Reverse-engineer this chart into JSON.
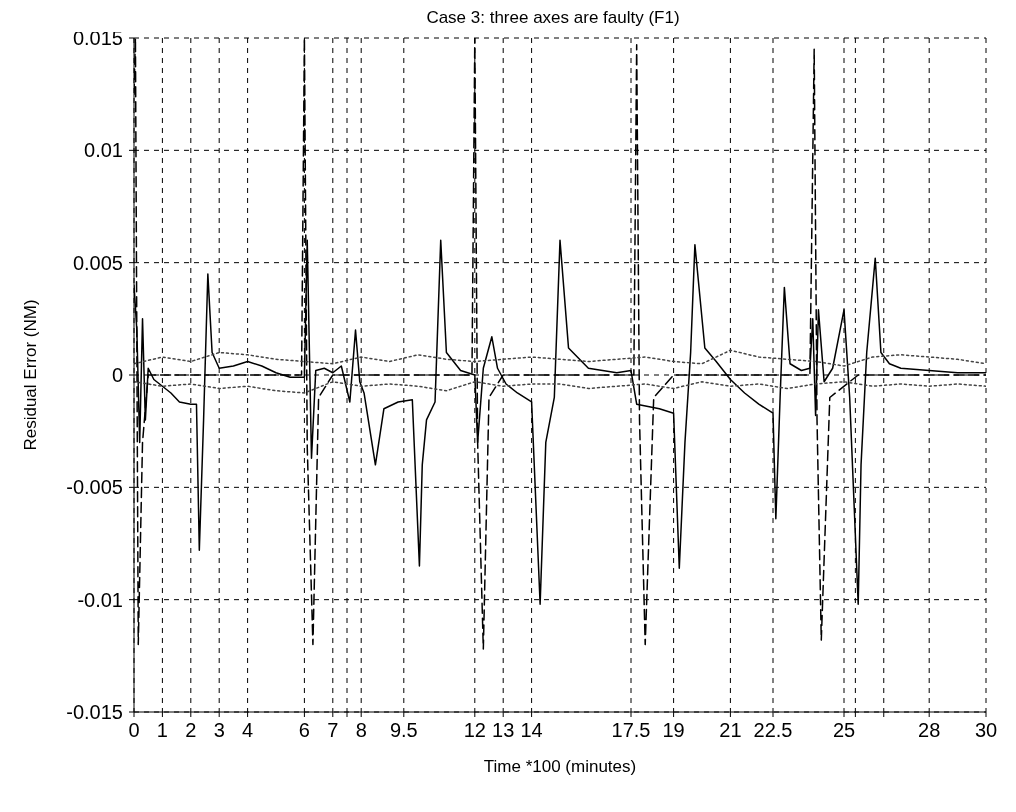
{
  "chart_data": {
    "type": "line",
    "title": "Case 3: three axes are faulty (F1)",
    "xlabel": "Time *100 (minutes)",
    "ylabel": "Residual Error (NM)",
    "xlim": [
      0,
      30
    ],
    "ylim": [
      -0.015,
      0.015
    ],
    "xticks": [
      0,
      1,
      2,
      3,
      4,
      6,
      7,
      {
        "value": 7.5,
        "label": null
      },
      8,
      9.5,
      12,
      13,
      14,
      17.5,
      19,
      21,
      22.5,
      25,
      {
        "value": 25.4,
        "label": null
      },
      {
        "value": 26.4,
        "label": null
      },
      28,
      30
    ],
    "yticks": [
      -0.015,
      -0.01,
      -0.005,
      0,
      0.005,
      0.01,
      0.015
    ],
    "grid": true,
    "series": [
      {
        "color": "#000000",
        "line_style": "solid",
        "x": [
          0,
          0.1,
          0.2,
          0.3,
          0.4,
          0.5,
          0.7,
          1.0,
          1.3,
          1.6,
          2.0,
          2.2,
          2.3,
          2.45,
          2.6,
          2.75,
          3.0,
          3.5,
          4.0,
          4.5,
          5.0,
          5.5,
          6.0,
          6.1,
          6.25,
          6.4,
          6.7,
          7.0,
          7.3,
          7.6,
          7.8,
          7.95,
          8.1,
          8.5,
          8.8,
          9.3,
          9.8,
          10.05,
          10.15,
          10.3,
          10.6,
          10.8,
          11.0,
          11.5,
          12.0,
          12.1,
          12.3,
          12.6,
          12.8,
          13.1,
          13.5,
          14.0,
          14.3,
          14.5,
          14.8,
          15.0,
          15.3,
          16.0,
          16.5,
          17.0,
          17.5,
          17.7,
          18.5,
          19.0,
          19.2,
          19.4,
          19.6,
          19.75,
          20.1,
          20.5,
          21.0,
          21.5,
          22.0,
          22.5,
          22.6,
          22.75,
          22.9,
          23.1,
          23.5,
          23.8,
          23.9,
          24.0,
          24.1,
          24.3,
          24.6,
          25.0,
          25.2,
          25.5,
          25.6,
          25.8,
          26.1,
          26.3,
          26.6,
          27.0,
          28.0,
          29.0,
          30.0
        ],
        "values": [
          0.004,
          0.002,
          -0.003,
          0.0025,
          -0.002,
          0.0003,
          -0.0002,
          -0.0005,
          -0.0008,
          -0.0012,
          -0.0013,
          -0.0013,
          -0.0078,
          -0.002,
          0.0045,
          0.001,
          0.0003,
          0.0004,
          0.0006,
          0.0004,
          0.0001,
          -0.0001,
          -0.0001,
          0.006,
          -0.0037,
          0.0002,
          0.0003,
          0.0001,
          0.0004,
          -0.0012,
          0.002,
          -0.0003,
          -0.0008,
          -0.004,
          -0.0015,
          -0.0012,
          -0.0011,
          -0.0085,
          -0.004,
          -0.002,
          -0.0012,
          0.006,
          0.001,
          0.0002,
          0,
          -0.003,
          0.0003,
          0.0017,
          0.0003,
          -0.0004,
          -0.0008,
          -0.0012,
          -0.0102,
          -0.003,
          -0.001,
          0.006,
          0.0012,
          0.0003,
          0.0002,
          0.0001,
          0.0002,
          -0.0013,
          -0.0015,
          -0.0017,
          -0.0086,
          -0.003,
          0.001,
          0.0058,
          0.0012,
          0.0006,
          -0.0002,
          -0.0008,
          -0.0013,
          -0.0017,
          -0.0064,
          -0.001,
          0.0039,
          0.0005,
          0.0002,
          0.0003,
          0.0025,
          -0.0018,
          0.0029,
          -0.0003,
          0.0003,
          0.0029,
          -0.001,
          -0.0102,
          -0.004,
          0.001,
          0.0052,
          0.001,
          0.0005,
          0.0003,
          0.0002,
          0.0001,
          0.0001
        ]
      },
      {
        "color": "#000000",
        "line_style": "dashed",
        "x": [
          0,
          0.05,
          0.15,
          0.3,
          0.5,
          1.0,
          3.0,
          5.9,
          6.0,
          6.1,
          6.3,
          6.5,
          7.0,
          9.0,
          11.9,
          12.0,
          12.1,
          12.3,
          12.5,
          13.0,
          15.0,
          17.6,
          17.7,
          17.8,
          18.0,
          18.3,
          19.0,
          21.0,
          23.8,
          23.95,
          24.05,
          24.2,
          24.5,
          25.5,
          28.0,
          30.0
        ],
        "values": [
          0.0125,
          0.015,
          -0.012,
          -0.003,
          0,
          0,
          0,
          0,
          0.015,
          -0.0032,
          -0.012,
          -0.001,
          0,
          0,
          0,
          0.015,
          -0.003,
          -0.0122,
          -0.001,
          0,
          0,
          0,
          0.0147,
          -0.002,
          -0.012,
          -0.001,
          0,
          0,
          0,
          0.0145,
          -0.002,
          -0.0118,
          -0.001,
          0,
          0,
          0
        ]
      },
      {
        "color": "#444444",
        "line_style": "dotted",
        "x": [
          0,
          1,
          2,
          3,
          4,
          5,
          6,
          7,
          8,
          9,
          10,
          11,
          12,
          13,
          14,
          15,
          16,
          17,
          18,
          19,
          20,
          21,
          22,
          23,
          24,
          25,
          26,
          27,
          28,
          29,
          30
        ],
        "values": [
          0.0005,
          0.0008,
          0.0006,
          0.001,
          0.0009,
          0.0007,
          0.0006,
          0.0005,
          0.0008,
          0.0006,
          0.0009,
          0.0007,
          0.0006,
          0.0007,
          0.0008,
          0.0007,
          0.0006,
          0.0007,
          0.0008,
          0.0006,
          0.0005,
          0.0011,
          0.0008,
          0.0007,
          0.0006,
          0.0004,
          0.0008,
          0.0009,
          0.0008,
          0.0007,
          0.0005
        ]
      },
      {
        "color": "#444444",
        "line_style": "dotted",
        "x": [
          0,
          1,
          2,
          3,
          4,
          5,
          6,
          7,
          8,
          9,
          10,
          11,
          12,
          13,
          14,
          15,
          16,
          17,
          18,
          19,
          20,
          21,
          22,
          23,
          24,
          25,
          26,
          27,
          28,
          29,
          30
        ],
        "values": [
          -0.0003,
          -0.0005,
          -0.0004,
          -0.0006,
          -0.0005,
          -0.0007,
          -0.0008,
          -0.0003,
          -0.0005,
          -0.0004,
          -0.0005,
          -0.0007,
          -0.0003,
          -0.0005,
          -0.0004,
          -0.0004,
          -0.0006,
          -0.0005,
          -0.0004,
          -0.0006,
          -0.0003,
          -0.0005,
          -0.0004,
          -0.0006,
          -0.0004,
          -0.0003,
          -0.0005,
          -0.0004,
          -0.0005,
          -0.0004,
          -0.0005
        ]
      }
    ]
  }
}
